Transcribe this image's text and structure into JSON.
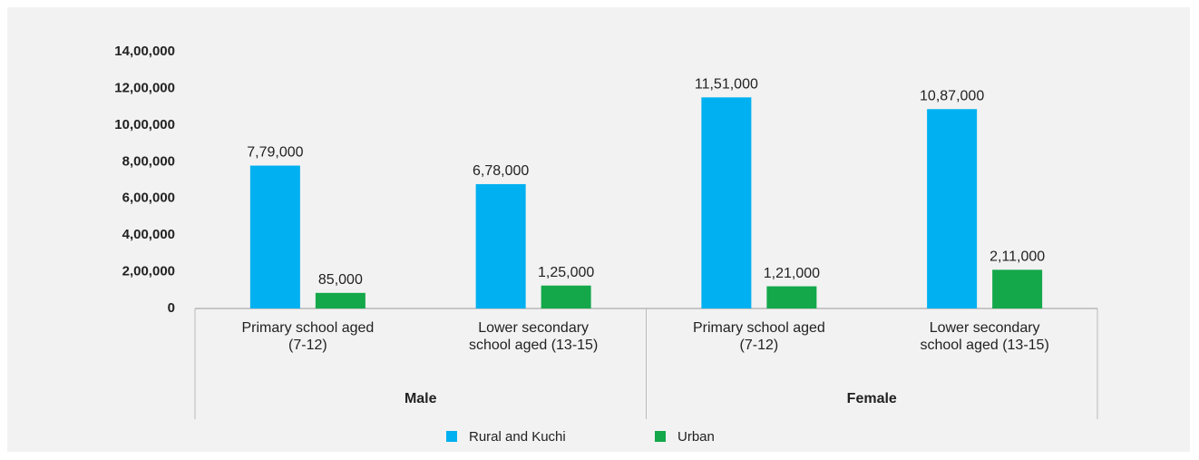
{
  "chart_data": {
    "type": "bar",
    "categories": [
      "Primary school aged (7-12)",
      "Lower secondary school aged (13-15)",
      "Primary school aged (7-12)",
      "Lower secondary school aged (13-15)"
    ],
    "groups": [
      "Male",
      "Female"
    ],
    "series": [
      {
        "name": "Rural and Kuchi",
        "color": "#00b0f0",
        "values": [
          779000,
          678000,
          1151000,
          1087000
        ],
        "value_labels": [
          "7,79,000",
          "6,78,000",
          "11,51,000",
          "10,87,000"
        ]
      },
      {
        "name": "Urban",
        "color": "#14a84b",
        "values": [
          85000,
          125000,
          121000,
          211000
        ],
        "value_labels": [
          "85,000",
          "1,25,000",
          "1,21,000",
          "2,11,000"
        ]
      }
    ],
    "ylim": [
      0,
      1400000
    ],
    "yticks": [
      0,
      {
        "value": 200000,
        "label": "2,00,000"
      },
      {
        "value": 400000,
        "label": "4,00,000"
      },
      {
        "value": 600000,
        "label": "6,00,000"
      },
      {
        "value": 800000,
        "label": "8,00,000"
      },
      {
        "value": 1000000,
        "label": "10,00,000"
      },
      {
        "value": 1200000,
        "label": "12,00,000"
      },
      {
        "value": 1400000,
        "label": "14,00,000"
      }
    ]
  }
}
